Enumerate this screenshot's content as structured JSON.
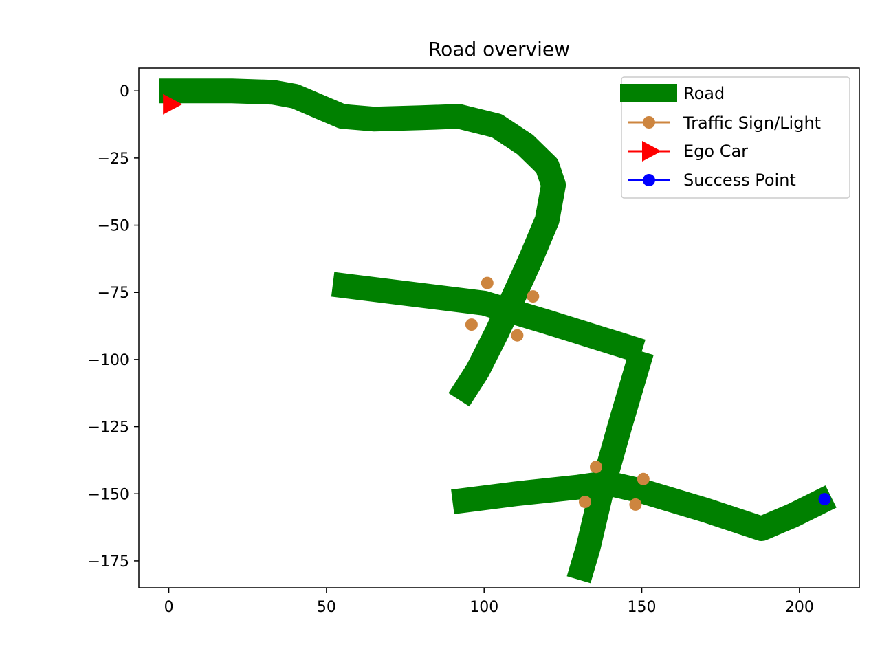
{
  "chart_data": {
    "type": "line",
    "title": "Road overview",
    "xlabel": "",
    "ylabel": "",
    "xlim": [
      -9.5,
      219
    ],
    "ylim": [
      -185,
      8.5
    ],
    "xticks": [
      0,
      50,
      100,
      150,
      200
    ],
    "yticks": [
      0,
      -25,
      -50,
      -75,
      -100,
      -125,
      -150,
      -175
    ],
    "xtick_labels": [
      "0",
      "50",
      "100",
      "150",
      "200"
    ],
    "ytick_labels": [
      "0",
      "−25",
      "−50",
      "−75",
      "−100",
      "−125",
      "−150",
      "−175"
    ],
    "grid": false,
    "legend_position": "upper right",
    "series": [
      {
        "name": "Road",
        "kind": "road",
        "color": "#008000",
        "segments": [
          [
            [
              -3,
              0
            ],
            [
              20,
              0
            ],
            [
              33,
              -0.5
            ],
            [
              40,
              -2
            ],
            [
              48,
              -6
            ],
            [
              55,
              -9.5
            ],
            [
              65,
              -10.5
            ],
            [
              80,
              -10
            ],
            [
              92,
              -9.5
            ],
            [
              104,
              -13
            ],
            [
              113,
              -20
            ],
            [
              120,
              -28
            ],
            [
              122,
              -35
            ],
            [
              120,
              -48
            ],
            [
              115,
              -62
            ],
            [
              110,
              -75
            ],
            [
              104,
              -90
            ],
            [
              98,
              -104
            ],
            [
              92,
              -115
            ]
          ],
          [
            [
              52,
              -72
            ],
            [
              100,
              -79
            ],
            [
              120,
              -86
            ],
            [
              150,
              -97
            ]
          ],
          [
            [
              150,
              -97
            ],
            [
              143,
              -125
            ],
            [
              137,
              -150
            ],
            [
              133,
              -170
            ],
            [
              130,
              -182
            ]
          ],
          [
            [
              90,
              -153
            ],
            [
              110,
              -150
            ],
            [
              130,
              -147.5
            ],
            [
              139,
              -146
            ],
            [
              150,
              -149
            ],
            [
              170,
              -156
            ],
            [
              188,
              -163
            ],
            [
              198,
              -158
            ],
            [
              210,
              -151
            ]
          ]
        ]
      },
      {
        "name": "Traffic Sign/Light",
        "kind": "points",
        "color": "#cd853f",
        "points": [
          [
            101,
            -71.5
          ],
          [
            115.5,
            -76.5
          ],
          [
            96,
            -87
          ],
          [
            110.5,
            -91
          ],
          [
            135.5,
            -140
          ],
          [
            150.5,
            -144.5
          ],
          [
            132,
            -153
          ],
          [
            148,
            -154
          ]
        ]
      },
      {
        "name": "Ego Car",
        "kind": "marker-right",
        "color": "#ff0000",
        "points": [
          [
            1,
            -5
          ]
        ]
      },
      {
        "name": "Success Point",
        "kind": "points",
        "color": "#0000ff",
        "points": [
          [
            208,
            -152
          ]
        ]
      }
    ]
  }
}
